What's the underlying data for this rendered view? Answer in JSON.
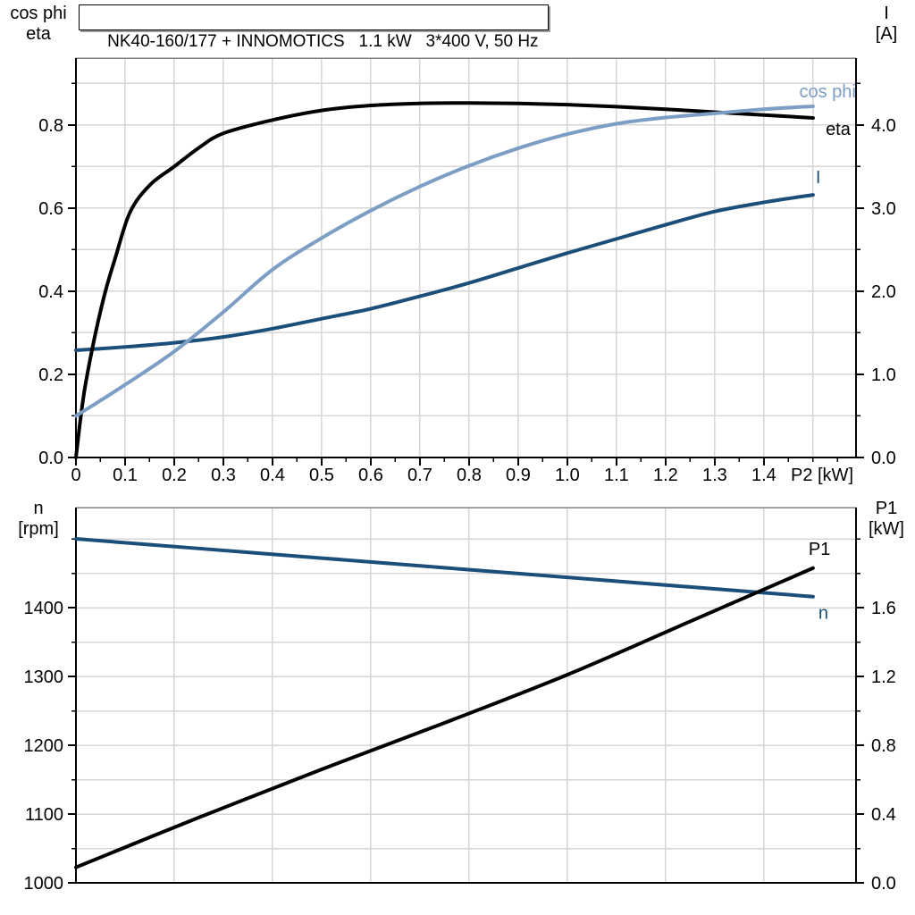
{
  "title_box": "NK40-160/177 + INNOMOTICS   1.1 kW   3*400 V, 50 Hz",
  "colors": {
    "black": "#000000",
    "dark_blue": "#1B4E79",
    "light_blue": "#7C9DC4",
    "grid": "#D6D6D6",
    "frame_top": "#7F7F7F",
    "axis": "#000000",
    "shadow": "#999999"
  },
  "chart_data": [
    {
      "id": "top",
      "type": "line",
      "x_axis": {
        "title": "P2 [kW]",
        "range": [
          0,
          1.5875
        ],
        "major_ticks": [
          0,
          0.1,
          0.2,
          0.3,
          0.4,
          0.5,
          0.6,
          0.7,
          0.8,
          0.9,
          1.0,
          1.1,
          1.2,
          1.3,
          1.4
        ],
        "tick_labels": [
          "0",
          "0.1",
          "0.2",
          "0.3",
          "0.4",
          "0.5",
          "0.6",
          "0.7",
          "0.8",
          "0.9",
          "1.0",
          "1.1",
          "1.2",
          "1.3",
          "1.4"
        ],
        "minor_ticks": [
          0.05,
          0.15,
          0.25,
          0.35,
          0.45,
          0.55,
          0.65,
          0.75,
          0.85,
          0.95,
          1.05,
          1.15,
          1.25,
          1.35,
          1.45,
          1.5,
          1.55
        ],
        "gridlines": [
          0.1,
          0.2,
          0.3,
          0.4,
          0.5,
          0.6,
          0.7,
          0.8,
          0.9,
          1.0,
          1.1,
          1.2,
          1.3,
          1.4,
          1.5
        ]
      },
      "y_left": {
        "title_lines": [
          "cos phi",
          "eta"
        ],
        "range": [
          0,
          0.961
        ],
        "major_ticks": [
          0,
          0.2,
          0.4,
          0.6,
          0.8
        ],
        "tick_labels": [
          "0.0",
          "0.2",
          "0.4",
          "0.6",
          "0.8"
        ],
        "minor_ticks": [
          0.1,
          0.3,
          0.5,
          0.7,
          0.9
        ],
        "gridlines": [
          0.1,
          0.2,
          0.3,
          0.4,
          0.5,
          0.6,
          0.7,
          0.8,
          0.9
        ]
      },
      "y_right": {
        "title_lines": [
          "I",
          "[A]"
        ],
        "range": [
          0,
          4.806
        ],
        "major_ticks": [
          0,
          1,
          2,
          3,
          4
        ],
        "tick_labels": [
          "0.0",
          "1.0",
          "2.0",
          "3.0",
          "4.0"
        ],
        "minor_ticks": [
          0.5,
          1.5,
          2.5,
          3.5,
          4.5
        ]
      },
      "series": [
        {
          "name": "I",
          "label": "I",
          "color": "#1B4E79",
          "axis": "right",
          "label_anchor": "start",
          "label_dx": 3,
          "label_dy": -13,
          "points": [
            [
              0,
              1.29
            ],
            [
              0.1,
              1.33
            ],
            [
              0.2,
              1.38
            ],
            [
              0.3,
              1.45
            ],
            [
              0.4,
              1.55
            ],
            [
              0.5,
              1.67
            ],
            [
              0.6,
              1.79
            ],
            [
              0.7,
              1.94
            ],
            [
              0.8,
              2.1
            ],
            [
              0.9,
              2.28
            ],
            [
              1.0,
              2.46
            ],
            [
              1.1,
              2.63
            ],
            [
              1.2,
              2.8
            ],
            [
              1.3,
              2.96
            ],
            [
              1.4,
              3.07
            ],
            [
              1.5,
              3.16
            ]
          ]
        },
        {
          "name": "eta",
          "label": "eta",
          "color": "#000000",
          "axis": "left",
          "label_anchor": "end",
          "label_dx": 42,
          "label_dy": 19,
          "points": [
            [
              0,
              0
            ],
            [
              0.01,
              0.1
            ],
            [
              0.02,
              0.18
            ],
            [
              0.04,
              0.3
            ],
            [
              0.06,
              0.4
            ],
            [
              0.08,
              0.48
            ],
            [
              0.11,
              0.59
            ],
            [
              0.15,
              0.655
            ],
            [
              0.2,
              0.7
            ],
            [
              0.25,
              0.745
            ],
            [
              0.3,
              0.78
            ],
            [
              0.4,
              0.812
            ],
            [
              0.5,
              0.835
            ],
            [
              0.6,
              0.847
            ],
            [
              0.7,
              0.852
            ],
            [
              0.8,
              0.853
            ],
            [
              0.9,
              0.852
            ],
            [
              1.0,
              0.849
            ],
            [
              1.1,
              0.844
            ],
            [
              1.2,
              0.838
            ],
            [
              1.3,
              0.831
            ],
            [
              1.4,
              0.824
            ],
            [
              1.5,
              0.817
            ]
          ]
        },
        {
          "name": "cos phi",
          "label": "cos phi",
          "color": "#7C9DC4",
          "axis": "left",
          "label_anchor": "end",
          "label_dx": 48,
          "label_dy": -10,
          "points": [
            [
              0,
              0.1
            ],
            [
              0.1,
              0.175
            ],
            [
              0.2,
              0.255
            ],
            [
              0.3,
              0.35
            ],
            [
              0.4,
              0.452
            ],
            [
              0.5,
              0.528
            ],
            [
              0.6,
              0.594
            ],
            [
              0.7,
              0.652
            ],
            [
              0.8,
              0.702
            ],
            [
              0.9,
              0.744
            ],
            [
              1.0,
              0.778
            ],
            [
              1.1,
              0.803
            ],
            [
              1.2,
              0.818
            ],
            [
              1.3,
              0.828
            ],
            [
              1.4,
              0.838
            ],
            [
              1.5,
              0.845
            ]
          ]
        }
      ]
    },
    {
      "id": "bottom",
      "type": "line",
      "x_axis": {
        "title": "",
        "range": [
          0,
          1.5875
        ],
        "major_ticks": [],
        "tick_labels": [],
        "minor_ticks": [],
        "gridlines": [
          0.2,
          0.4,
          0.6,
          0.8,
          1.0,
          1.2,
          1.4
        ]
      },
      "y_left": {
        "title_lines": [
          "n",
          "[rpm]"
        ],
        "range": [
          1000,
          1545.5
        ],
        "major_ticks": [
          1000,
          1100,
          1200,
          1300,
          1400
        ],
        "tick_labels": [
          "1000",
          "1100",
          "1200",
          "1300",
          "1400"
        ],
        "minor_ticks": [
          1050,
          1150,
          1250,
          1350,
          1450,
          1500
        ],
        "gridlines": [
          1050,
          1100,
          1150,
          1200,
          1250,
          1300,
          1350,
          1400,
          1450,
          1500
        ]
      },
      "y_right": {
        "title_lines": [
          "P1",
          "[kW]"
        ],
        "range": [
          0,
          2.182
        ],
        "major_ticks": [
          0,
          0.4,
          0.8,
          1.2,
          1.6
        ],
        "tick_labels": [
          "0.0",
          "0.4",
          "0.8",
          "1.2",
          "1.6"
        ],
        "minor_ticks": [
          0.2,
          0.6,
          1.0,
          1.4,
          1.8,
          2.0
        ]
      },
      "series": [
        {
          "name": "n",
          "label": "n",
          "color": "#1B4E79",
          "axis": "left",
          "label_anchor": "start",
          "label_dx": 6,
          "label_dy": 25,
          "points": [
            [
              0,
              1500
            ],
            [
              0.25,
              1486
            ],
            [
              0.5,
              1472
            ],
            [
              0.75,
              1458
            ],
            [
              1.0,
              1444
            ],
            [
              1.25,
              1430
            ],
            [
              1.5,
              1416
            ]
          ]
        },
        {
          "name": "P1",
          "label": "P1",
          "color": "#000000",
          "axis": "right",
          "label_anchor": "start",
          "label_dx": -5,
          "label_dy": -15,
          "points": [
            [
              0,
              0.09
            ],
            [
              0.25,
              0.38
            ],
            [
              0.5,
              0.66
            ],
            [
              0.75,
              0.93
            ],
            [
              1.0,
              1.21
            ],
            [
              1.25,
              1.52
            ],
            [
              1.5,
              1.83
            ]
          ]
        }
      ]
    }
  ]
}
